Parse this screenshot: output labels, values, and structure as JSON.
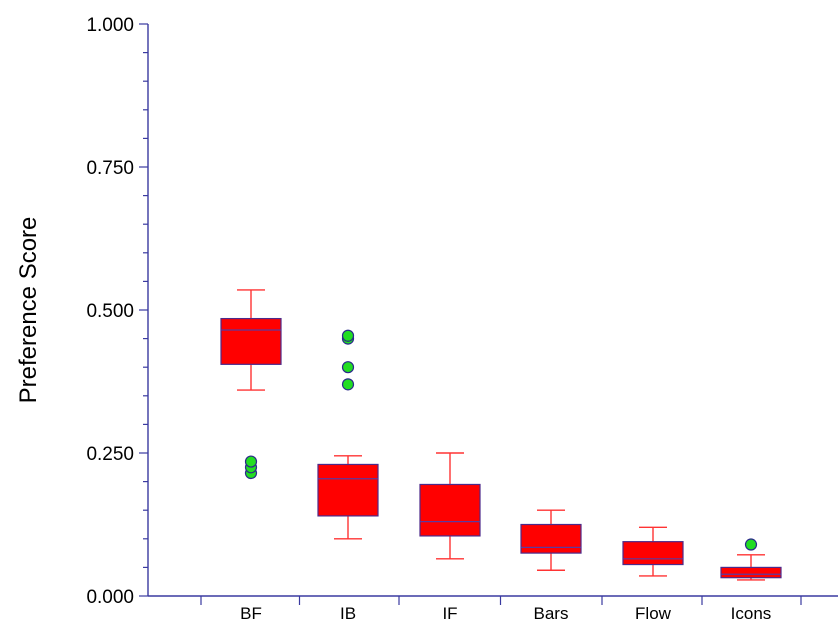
{
  "chart_data": {
    "type": "box",
    "ylabel": "Preference Score",
    "xlabel": "",
    "ylim": [
      0,
      1
    ],
    "y_ticks": [
      "0.000",
      "0.250",
      "0.500",
      "0.750",
      "1.000"
    ],
    "categories": [
      "BF",
      "IB",
      "IF",
      "Bars",
      "Flow",
      "Icons"
    ],
    "boxes": [
      {
        "category": "BF",
        "whisker_low": 0.36,
        "q1": 0.405,
        "median": 0.465,
        "q3": 0.485,
        "whisker_high": 0.535,
        "outliers": [
          0.215,
          0.225,
          0.235
        ]
      },
      {
        "category": "IB",
        "whisker_low": 0.1,
        "q1": 0.14,
        "median": 0.205,
        "q3": 0.23,
        "whisker_high": 0.245,
        "outliers": [
          0.37,
          0.4,
          0.45,
          0.455
        ]
      },
      {
        "category": "IF",
        "whisker_low": 0.065,
        "q1": 0.105,
        "median": 0.13,
        "q3": 0.195,
        "whisker_high": 0.25,
        "outliers": []
      },
      {
        "category": "Bars",
        "whisker_low": 0.045,
        "q1": 0.075,
        "median": 0.085,
        "q3": 0.125,
        "whisker_high": 0.15,
        "outliers": []
      },
      {
        "category": "Flow",
        "whisker_low": 0.035,
        "q1": 0.055,
        "median": 0.065,
        "q3": 0.095,
        "whisker_high": 0.12,
        "outliers": []
      },
      {
        "category": "Icons",
        "whisker_low": 0.028,
        "q1": 0.032,
        "median": 0.038,
        "q3": 0.05,
        "whisker_high": 0.072,
        "outliers": [
          0.09
        ]
      }
    ],
    "colors": {
      "box_fill": "#ff0000",
      "box_stroke": "#4d2a8a",
      "median_line": "#5a3aa0",
      "whisker": "#ff3333",
      "outlier_fill": "#22dd22",
      "outlier_stroke": "#2a2a8a",
      "axis": "#3a3aa0"
    },
    "grid": false,
    "legend": "none"
  }
}
